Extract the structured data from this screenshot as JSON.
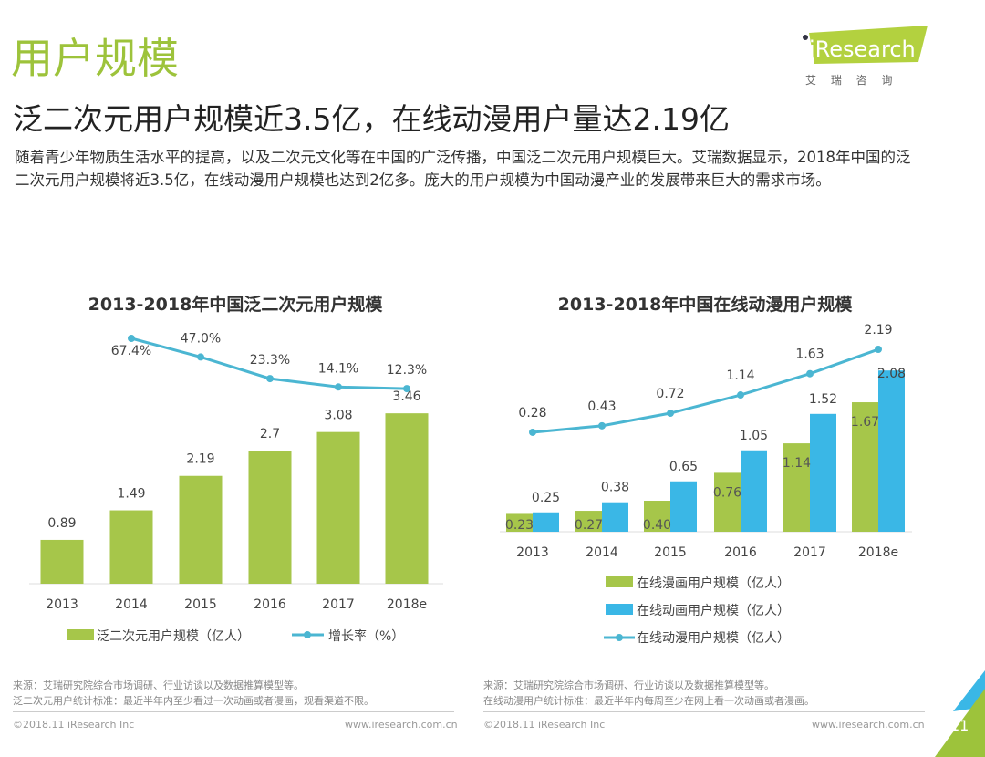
{
  "header": {
    "section_title": "用户规模",
    "headline": "泛二次元用户规模近3.5亿，在线动漫用户量达2.19亿",
    "intro": "随着青少年物质生活水平的提高，以及二次元文化等在中国的广泛传播，中国泛二次元用户规模巨大。艾瑞数据显示，2018年中国的泛二次元用户规模将近3.5亿，在线动漫用户规模也达到2亿多。庞大的用户规模为中国动漫产业的发展带来巨大的需求市场。",
    "logo_text": "iResearch",
    "logo_cn": "艾 瑞 咨 询"
  },
  "colors": {
    "accent_green": "#a6c64a",
    "accent_blue": "#3ab7e6",
    "line": "#4bb6d2"
  },
  "chart_data": [
    {
      "type": "bar",
      "title": "2013-2018年中国泛二次元用户规模",
      "categories": [
        "2013",
        "2014",
        "2015",
        "2016",
        "2017",
        "2018e"
      ],
      "series": [
        {
          "name": "泛二次元用户规模（亿人）",
          "type": "bar",
          "values": [
            0.89,
            1.49,
            2.19,
            2.7,
            3.08,
            3.46
          ],
          "labels": [
            "0.89",
            "1.49",
            "2.19",
            "2.7",
            "3.08",
            "3.46"
          ]
        },
        {
          "name": "增长率（%）",
          "type": "line",
          "values": [
            null,
            67.4,
            47.0,
            23.3,
            14.1,
            12.3
          ],
          "labels": [
            "",
            "67.4%",
            "47.0%",
            "23.3%",
            "14.1%",
            "12.3%"
          ]
        }
      ],
      "legend": "bottom",
      "grid": false
    },
    {
      "type": "bar",
      "title": "2013-2018年中国在线动漫用户规模",
      "categories": [
        "2013",
        "2014",
        "2015",
        "2016",
        "2017",
        "2018e"
      ],
      "series": [
        {
          "name": "在线漫画用户规模（亿人）",
          "type": "bar",
          "values": [
            0.23,
            0.27,
            0.4,
            0.76,
            1.14,
            1.67
          ],
          "labels": [
            "0.23",
            "0.27",
            "0.40",
            "0.76",
            "1.14",
            "1.67"
          ]
        },
        {
          "name": "在线动画用户规模（亿人）",
          "type": "bar",
          "values": [
            0.25,
            0.38,
            0.65,
            1.05,
            1.52,
            2.08
          ],
          "labels": [
            "0.25",
            "0.38",
            "0.65",
            "1.05",
            "1.52",
            "2.08"
          ]
        },
        {
          "name": "在线动漫用户规模（亿人）",
          "type": "line",
          "values": [
            0.28,
            0.43,
            0.72,
            1.14,
            1.63,
            2.19
          ],
          "labels": [
            "0.28",
            "0.43",
            "0.72",
            "1.14",
            "1.63",
            "2.19"
          ]
        }
      ],
      "legend": "bottom",
      "grid": false
    }
  ],
  "footer": {
    "left_source": "来源：艾瑞研究院综合市场调研、行业访谈以及数据推算模型等。",
    "left_note": "泛二次元用户统计标准：最近半年内至少看过一次动画或者漫画，观看渠道不限。",
    "right_source": "来源：艾瑞研究院综合市场调研、行业访谈以及数据推算模型等。",
    "right_note": "在线动漫用户统计标准：最近半年内每周至少在网上看一次动画或者漫画。",
    "copyright": "©2018.11 iResearch Inc",
    "website": "www.iresearch.com.cn",
    "page_number": "11"
  }
}
